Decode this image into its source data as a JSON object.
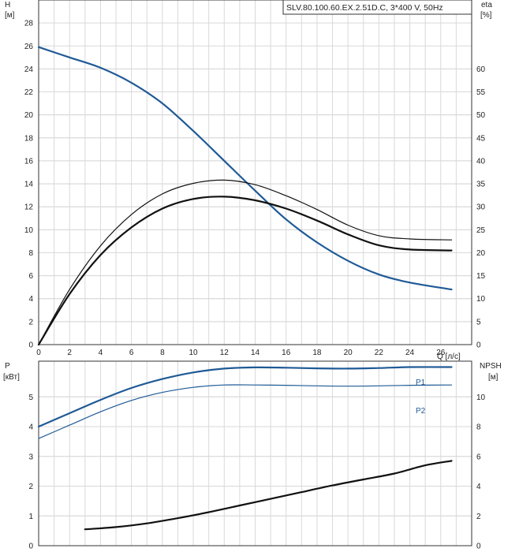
{
  "title": "SLV.80.100.60.EX.2.51D.C, 3*400 V, 50Hz",
  "colors": {
    "blue": "#1f5a96",
    "black": "#111111",
    "grid": "#d9d9d9"
  },
  "chart_data": [
    {
      "type": "line",
      "title": "SLV.80.100.60.EX.2.51D.C, 3*400 V, 50Hz",
      "xlabel": "Q [л/с]",
      "x_unit_label": "Q [л/с]",
      "ylabel": "H\n[м]",
      "ylabel_line1": "H",
      "ylabel_line2": "[м]",
      "y2label_line1": "eta",
      "y2label_line2": "[%]",
      "xlim": [
        0,
        28
      ],
      "ylim": [
        0,
        30
      ],
      "y2lim": [
        0,
        75
      ],
      "xticks": [
        0,
        2,
        4,
        6,
        8,
        10,
        12,
        14,
        16,
        18,
        20,
        22,
        24,
        26
      ],
      "yticks": [
        0,
        2,
        4,
        6,
        8,
        10,
        12,
        14,
        16,
        18,
        20,
        22,
        24,
        26,
        28
      ],
      "y2ticks": [
        0,
        5,
        10,
        15,
        20,
        25,
        30,
        35,
        40,
        45,
        50,
        55,
        60
      ],
      "grid": true,
      "series": [
        {
          "key": "H",
          "axis": "left",
          "color": "#1f5a96",
          "width": 2.2,
          "x": [
            0,
            2,
            4,
            6,
            8,
            10,
            12,
            14,
            16,
            18,
            20,
            22,
            24,
            26.7
          ],
          "y": [
            25.9,
            25.0,
            24.1,
            22.8,
            21.0,
            18.6,
            16.0,
            13.4,
            10.9,
            8.9,
            7.3,
            6.1,
            5.4,
            4.8
          ]
        },
        {
          "key": "eta_total",
          "axis": "right",
          "color": "#111111",
          "width": 1.2,
          "x": [
            0,
            2,
            4,
            6,
            8,
            10,
            12,
            14,
            16,
            18,
            20,
            22,
            24,
            26.7
          ],
          "y": [
            0,
            12,
            21.5,
            28.3,
            32.8,
            35.1,
            35.8,
            34.8,
            32.4,
            29.4,
            26.0,
            23.7,
            23.0,
            22.8
          ]
        },
        {
          "key": "eta_hydraulic",
          "axis": "right",
          "color": "#111111",
          "width": 2.2,
          "x": [
            0,
            2,
            4,
            6,
            8,
            10,
            12,
            14,
            16,
            18,
            20,
            22,
            24,
            26.7
          ],
          "y": [
            0,
            11.0,
            19.5,
            25.5,
            29.6,
            31.7,
            32.2,
            31.4,
            29.6,
            27.0,
            24.0,
            21.6,
            20.7,
            20.5
          ]
        }
      ]
    },
    {
      "type": "line",
      "xlim": [
        0,
        28
      ],
      "ylim": [
        0,
        6.2
      ],
      "y2lim": [
        0,
        12.4
      ],
      "ylabel_line1": "P",
      "ylabel_line2": "[кВт]",
      "y2label_line1": "NPSH",
      "y2label_line2": "[м]",
      "yticks": [
        0,
        1,
        2,
        3,
        4,
        5
      ],
      "y2ticks": [
        0,
        2,
        4,
        6,
        8,
        10
      ],
      "grid": true,
      "series": [
        {
          "key": "P1",
          "name": "P1",
          "axis": "left",
          "color": "#1f5a96",
          "width": 2.2,
          "x": [
            0,
            2,
            4,
            6,
            8,
            10,
            12,
            14,
            16,
            18,
            20,
            22,
            24,
            26.7
          ],
          "y": [
            4.0,
            4.45,
            4.9,
            5.3,
            5.6,
            5.82,
            5.95,
            5.99,
            5.98,
            5.96,
            5.95,
            5.97,
            6.0,
            6.0
          ]
        },
        {
          "key": "P2",
          "name": "P2",
          "axis": "left",
          "color": "#1f5a96",
          "width": 1.2,
          "x": [
            0,
            2,
            4,
            6,
            8,
            10,
            12,
            14,
            16,
            18,
            20,
            22,
            24,
            26.7
          ],
          "y": [
            3.6,
            4.05,
            4.5,
            4.88,
            5.15,
            5.32,
            5.4,
            5.4,
            5.39,
            5.37,
            5.36,
            5.37,
            5.39,
            5.4
          ]
        },
        {
          "key": "NPSH",
          "axis": "right",
          "color": "#111111",
          "width": 2.2,
          "x": [
            3,
            5,
            7,
            9,
            11,
            13,
            15,
            17,
            19,
            21,
            23,
            25,
            26.7
          ],
          "y": [
            1.1,
            1.25,
            1.5,
            1.85,
            2.25,
            2.7,
            3.15,
            3.6,
            4.05,
            4.45,
            4.85,
            5.4,
            5.7
          ]
        }
      ]
    }
  ]
}
